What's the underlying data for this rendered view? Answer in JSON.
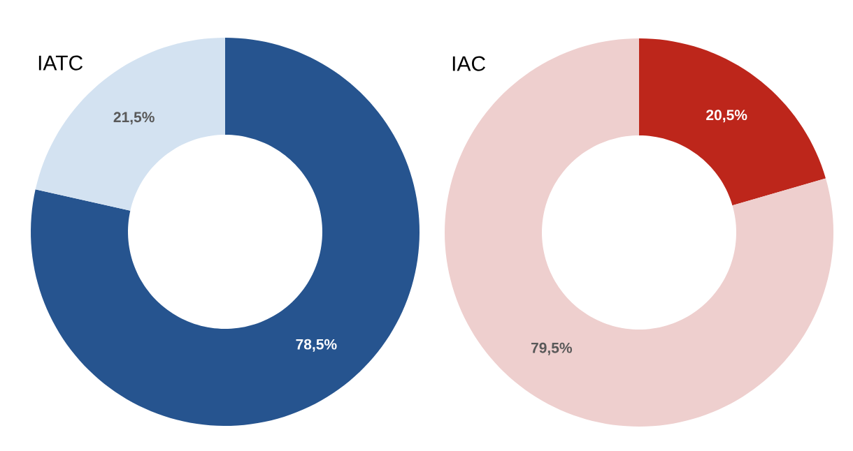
{
  "chart_data": [
    {
      "type": "donut",
      "title": "IATC",
      "categories": [
        null,
        null
      ],
      "values": [
        78.5,
        21.5
      ],
      "colors": [
        "#26548f",
        "#d3e2f1"
      ],
      "value_labels": [
        "78,5%",
        "21,5%"
      ]
    },
    {
      "type": "donut",
      "title": "IAC",
      "categories": [
        null,
        null
      ],
      "values": [
        20.5,
        79.5
      ],
      "colors": [
        "#bd261b",
        "#eecfce"
      ],
      "value_labels": [
        "20,5%",
        "79,5%"
      ]
    }
  ]
}
